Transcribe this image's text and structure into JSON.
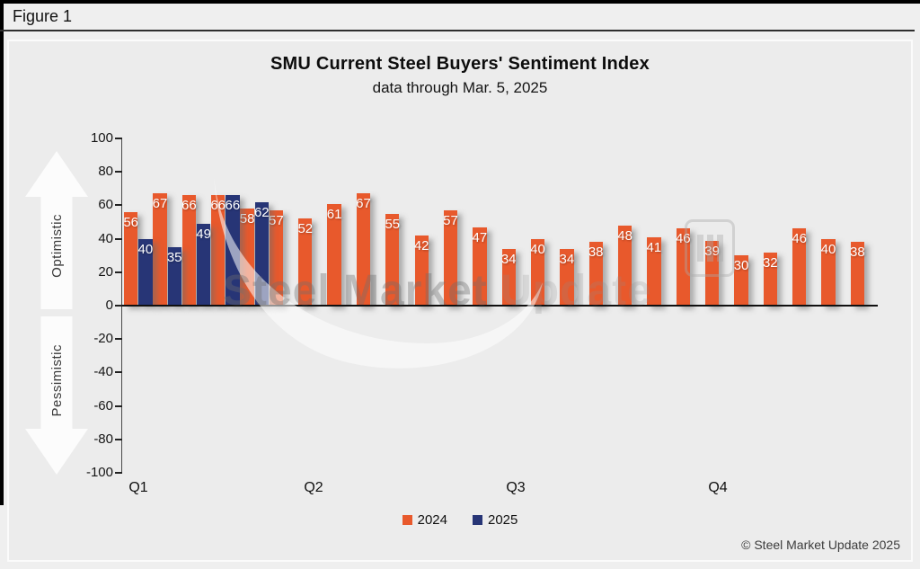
{
  "window": {
    "figure_label": "Figure 1"
  },
  "header": {
    "title": "SMU Current Steel Buyers' Sentiment Index",
    "subtitle": "data through Mar. 5, 2025"
  },
  "side_labels": {
    "optimistic": "Optimistic",
    "pessimistic": "Pessimistic"
  },
  "watermark": {
    "text_primary": "Steel Market",
    "text_secondary": "Update"
  },
  "footer": {
    "copyright": "© Steel Market Update 2025"
  },
  "chart_data": {
    "type": "bar",
    "title": "SMU Current Steel Buyers' Sentiment Index",
    "subtitle": "data through Mar. 5, 2025",
    "ylim": [
      -100,
      100
    ],
    "yticks": [
      100,
      80,
      60,
      40,
      20,
      0,
      -20,
      -40,
      -60,
      -80,
      -100
    ],
    "x_quarter_labels": [
      "Q1",
      "Q2",
      "Q3",
      "Q4"
    ],
    "num_positions": 26,
    "grid": false,
    "legend_position": "bottom",
    "bar_labels_shown": true,
    "series": [
      {
        "name": "2024",
        "color": "#E8592C",
        "values": [
          56,
          67,
          66,
          66,
          58,
          57,
          52,
          61,
          67,
          55,
          42,
          57,
          47,
          34,
          40,
          34,
          38,
          48,
          41,
          46,
          39,
          30,
          32,
          46,
          40,
          38
        ]
      },
      {
        "name": "2025",
        "color": "#273576",
        "values": [
          40,
          35,
          49,
          66,
          62
        ]
      }
    ]
  }
}
